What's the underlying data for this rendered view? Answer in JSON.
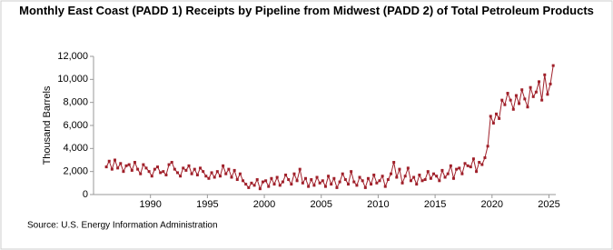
{
  "chart_data": {
    "type": "line",
    "title": "Monthly East Coast (PADD 1) Receipts by Pipeline from Midwest (PADD 2) of Total Petroleum Products",
    "y_label": "Thousand Barrels",
    "source": "Source: U.S. Energy Information Administration",
    "x": [
      1986.125,
      1986.375,
      1986.625,
      1986.875,
      1987.125,
      1987.375,
      1987.625,
      1987.875,
      1988.125,
      1988.375,
      1988.625,
      1988.875,
      1989.125,
      1989.375,
      1989.625,
      1989.875,
      1990.125,
      1990.375,
      1990.625,
      1990.875,
      1991.125,
      1991.375,
      1991.625,
      1991.875,
      1992.125,
      1992.375,
      1992.625,
      1992.875,
      1993.125,
      1993.375,
      1993.625,
      1993.875,
      1994.125,
      1994.375,
      1994.625,
      1994.875,
      1995.125,
      1995.375,
      1995.625,
      1995.875,
      1996.125,
      1996.375,
      1996.625,
      1996.875,
      1997.125,
      1997.375,
      1997.625,
      1997.875,
      1998.125,
      1998.375,
      1998.625,
      1998.875,
      1999.125,
      1999.375,
      1999.625,
      1999.875,
      2000.125,
      2000.375,
      2000.625,
      2000.875,
      2001.125,
      2001.375,
      2001.625,
      2001.875,
      2002.125,
      2002.375,
      2002.625,
      2002.875,
      2003.125,
      2003.375,
      2003.625,
      2003.875,
      2004.125,
      2004.375,
      2004.625,
      2004.875,
      2005.125,
      2005.375,
      2005.625,
      2005.875,
      2006.125,
      2006.375,
      2006.625,
      2006.875,
      2007.125,
      2007.375,
      2007.625,
      2007.875,
      2008.125,
      2008.375,
      2008.625,
      2008.875,
      2009.125,
      2009.375,
      2009.625,
      2009.875,
      2010.125,
      2010.375,
      2010.625,
      2010.875,
      2011.125,
      2011.375,
      2011.625,
      2011.875,
      2012.125,
      2012.375,
      2012.625,
      2012.875,
      2013.125,
      2013.375,
      2013.625,
      2013.875,
      2014.125,
      2014.375,
      2014.625,
      2014.875,
      2015.125,
      2015.375,
      2015.625,
      2015.875,
      2016.125,
      2016.375,
      2016.625,
      2016.875,
      2017.125,
      2017.375,
      2017.625,
      2017.875,
      2018.125,
      2018.375,
      2018.625,
      2018.875,
      2019.125,
      2019.375,
      2019.625,
      2019.875,
      2020.125,
      2020.375,
      2020.625,
      2020.875,
      2021.125,
      2021.375,
      2021.625,
      2021.875,
      2022.125,
      2022.375,
      2022.625,
      2022.875,
      2023.125,
      2023.375,
      2023.625,
      2023.875,
      2024.125,
      2024.375,
      2024.625,
      2024.875,
      2025.125,
      2025.375
    ],
    "series": [
      {
        "color": "#a0202a",
        "values": [
          2400,
          2900,
          2200,
          3000,
          2300,
          2700,
          2000,
          2500,
          2600,
          2100,
          2800,
          2200,
          1800,
          2600,
          2300,
          2000,
          1600,
          2200,
          2400,
          1900,
          2000,
          1700,
          2600,
          2800,
          2200,
          1900,
          1600,
          2300,
          2100,
          2500,
          1800,
          2200,
          1700,
          2300,
          2000,
          1600,
          1400,
          1900,
          1500,
          2000,
          1600,
          2500,
          1800,
          2200,
          1500,
          2100,
          1300,
          1800,
          1200,
          900,
          600,
          1000,
          800,
          1300,
          500,
          1100,
          1200,
          700,
          1400,
          900,
          1500,
          800,
          1100,
          1700,
          1300,
          900,
          1800,
          1200,
          2200,
          1000,
          1400,
          700,
          1300,
          800,
          1500,
          1000,
          1200,
          700,
          1600,
          900,
          1400,
          600,
          1100,
          1800,
          1300,
          900,
          2000,
          1100,
          800,
          1500,
          1200,
          600,
          1400,
          900,
          1700,
          1000,
          1200,
          1600,
          700,
          1300,
          1800,
          2800,
          1500,
          2200,
          1000,
          1600,
          2300,
          1200,
          1500,
          900,
          1700,
          1200,
          1300,
          2000,
          1400,
          1800,
          1600,
          1200,
          2100,
          1500,
          1800,
          2500,
          1400,
          2200,
          2300,
          1800,
          2700,
          2500,
          2400,
          3100,
          2000,
          2800,
          2600,
          3200,
          4200,
          6800,
          6200,
          7000,
          6600,
          8200,
          7800,
          8800,
          8200,
          7400,
          8600,
          7900,
          9100,
          8300,
          7600,
          9300,
          8500,
          8900,
          9800,
          8200,
          10400,
          8700,
          9600,
          11200
        ]
      }
    ],
    "xlim": [
      1985,
      2025.6
    ],
    "xticks": [
      1990,
      1995,
      2000,
      2005,
      2010,
      2015,
      2020,
      2025
    ],
    "ylim": [
      0,
      12000
    ],
    "yticks": [
      0,
      {
        "value": 2000,
        "label": "2,000"
      },
      {
        "value": 4000,
        "label": "4,000"
      },
      {
        "value": 6000,
        "label": "6,000"
      },
      {
        "value": 8000,
        "label": "8,000"
      },
      {
        "value": 10000,
        "label": "10,000"
      },
      {
        "value": 12000,
        "label": "12,000"
      }
    ],
    "grid": false
  }
}
